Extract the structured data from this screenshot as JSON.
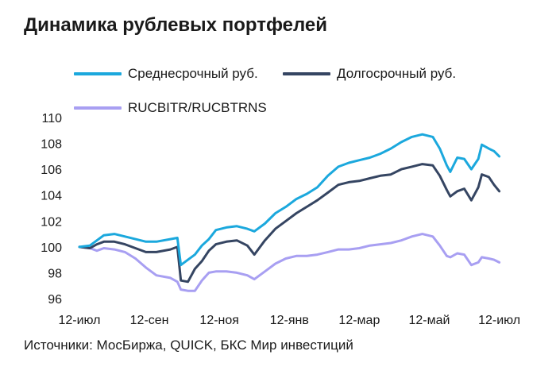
{
  "title": "Динамика рублевых портфелей",
  "source": "Источники: МосБиржа, QUICK, БКС Мир инвестиций",
  "chart_data": {
    "type": "line",
    "title": "Динамика рублевых портфелей",
    "xlabel": "",
    "ylabel": "",
    "ylim": [
      96,
      110
    ],
    "yticks": [
      96,
      98,
      100,
      102,
      104,
      106,
      108,
      110
    ],
    "xlim": [
      0,
      12.1
    ],
    "xticks": [
      {
        "label": "12-июл",
        "x": 0
      },
      {
        "label": "12-сен",
        "x": 2
      },
      {
        "label": "12-ноя",
        "x": 4
      },
      {
        "label": "12-янв",
        "x": 6
      },
      {
        "label": "12-мар",
        "x": 8
      },
      {
        "label": "12-май",
        "x": 10
      },
      {
        "label": "12-июл",
        "x": 12
      }
    ],
    "grid": false,
    "legend": "top",
    "series": [
      {
        "name": "Среднесрочный руб.",
        "color": "#1ba8dd",
        "points": [
          [
            0,
            100
          ],
          [
            0.3,
            100.1
          ],
          [
            0.5,
            100.5
          ],
          [
            0.7,
            100.9
          ],
          [
            1,
            101
          ],
          [
            1.3,
            100.8
          ],
          [
            1.6,
            100.6
          ],
          [
            1.9,
            100.4
          ],
          [
            2.2,
            100.4
          ],
          [
            2.6,
            100.6
          ],
          [
            2.8,
            100.7
          ],
          [
            2.9,
            98.6
          ],
          [
            3.1,
            99
          ],
          [
            3.3,
            99.4
          ],
          [
            3.5,
            100.1
          ],
          [
            3.7,
            100.6
          ],
          [
            3.9,
            101.3
          ],
          [
            4.2,
            101.5
          ],
          [
            4.5,
            101.6
          ],
          [
            4.8,
            101.4
          ],
          [
            5,
            101.2
          ],
          [
            5.3,
            101.8
          ],
          [
            5.6,
            102.6
          ],
          [
            5.9,
            103.1
          ],
          [
            6.2,
            103.7
          ],
          [
            6.5,
            104.1
          ],
          [
            6.8,
            104.6
          ],
          [
            7.1,
            105.5
          ],
          [
            7.4,
            106.2
          ],
          [
            7.7,
            106.5
          ],
          [
            8,
            106.7
          ],
          [
            8.3,
            106.9
          ],
          [
            8.6,
            107.2
          ],
          [
            8.9,
            107.6
          ],
          [
            9.2,
            108.1
          ],
          [
            9.5,
            108.5
          ],
          [
            9.8,
            108.7
          ],
          [
            10.1,
            108.5
          ],
          [
            10.3,
            107.6
          ],
          [
            10.5,
            106.3
          ],
          [
            10.6,
            105.8
          ],
          [
            10.8,
            106.9
          ],
          [
            11,
            106.8
          ],
          [
            11.2,
            106
          ],
          [
            11.4,
            106.8
          ],
          [
            11.5,
            107.9
          ],
          [
            11.7,
            107.6
          ],
          [
            11.85,
            107.4
          ],
          [
            12,
            107
          ]
        ]
      },
      {
        "name": "Долгосрочный руб.",
        "color": "#354562",
        "points": [
          [
            0,
            100
          ],
          [
            0.3,
            99.9
          ],
          [
            0.5,
            100.2
          ],
          [
            0.7,
            100.4
          ],
          [
            1,
            100.4
          ],
          [
            1.3,
            100.2
          ],
          [
            1.6,
            99.9
          ],
          [
            1.9,
            99.6
          ],
          [
            2.2,
            99.6
          ],
          [
            2.6,
            99.8
          ],
          [
            2.8,
            100
          ],
          [
            2.9,
            97.4
          ],
          [
            3.1,
            97.3
          ],
          [
            3.3,
            98.3
          ],
          [
            3.5,
            98.9
          ],
          [
            3.7,
            99.7
          ],
          [
            3.9,
            100.2
          ],
          [
            4.2,
            100.4
          ],
          [
            4.5,
            100.5
          ],
          [
            4.8,
            100.1
          ],
          [
            5,
            99.4
          ],
          [
            5.3,
            100.5
          ],
          [
            5.6,
            101.4
          ],
          [
            5.9,
            102
          ],
          [
            6.2,
            102.6
          ],
          [
            6.5,
            103.1
          ],
          [
            6.8,
            103.6
          ],
          [
            7.1,
            104.2
          ],
          [
            7.4,
            104.8
          ],
          [
            7.7,
            105
          ],
          [
            8,
            105.1
          ],
          [
            8.3,
            105.3
          ],
          [
            8.6,
            105.5
          ],
          [
            8.9,
            105.6
          ],
          [
            9.2,
            106
          ],
          [
            9.5,
            106.2
          ],
          [
            9.8,
            106.4
          ],
          [
            10.1,
            106.3
          ],
          [
            10.3,
            105.5
          ],
          [
            10.5,
            104.4
          ],
          [
            10.6,
            103.9
          ],
          [
            10.8,
            104.3
          ],
          [
            11,
            104.5
          ],
          [
            11.2,
            103.6
          ],
          [
            11.4,
            104.6
          ],
          [
            11.5,
            105.6
          ],
          [
            11.7,
            105.4
          ],
          [
            11.85,
            104.8
          ],
          [
            12,
            104.3
          ]
        ]
      },
      {
        "name": "RUCBITR/RUCBTRNS",
        "color": "#a89ff2",
        "points": [
          [
            0,
            100
          ],
          [
            0.3,
            99.9
          ],
          [
            0.5,
            99.7
          ],
          [
            0.7,
            99.9
          ],
          [
            1,
            99.8
          ],
          [
            1.3,
            99.6
          ],
          [
            1.6,
            99.1
          ],
          [
            1.9,
            98.4
          ],
          [
            2.2,
            97.8
          ],
          [
            2.6,
            97.6
          ],
          [
            2.8,
            97.3
          ],
          [
            2.9,
            96.7
          ],
          [
            3.1,
            96.6
          ],
          [
            3.3,
            96.6
          ],
          [
            3.5,
            97.4
          ],
          [
            3.7,
            98
          ],
          [
            3.9,
            98.1
          ],
          [
            4.2,
            98.1
          ],
          [
            4.5,
            98
          ],
          [
            4.8,
            97.8
          ],
          [
            5,
            97.5
          ],
          [
            5.3,
            98.1
          ],
          [
            5.6,
            98.7
          ],
          [
            5.9,
            99.1
          ],
          [
            6.2,
            99.3
          ],
          [
            6.5,
            99.3
          ],
          [
            6.8,
            99.4
          ],
          [
            7.1,
            99.6
          ],
          [
            7.4,
            99.8
          ],
          [
            7.7,
            99.8
          ],
          [
            8,
            99.9
          ],
          [
            8.3,
            100.1
          ],
          [
            8.6,
            100.2
          ],
          [
            8.9,
            100.3
          ],
          [
            9.2,
            100.5
          ],
          [
            9.5,
            100.8
          ],
          [
            9.8,
            101
          ],
          [
            10.1,
            100.8
          ],
          [
            10.3,
            100.1
          ],
          [
            10.5,
            99.3
          ],
          [
            10.6,
            99.2
          ],
          [
            10.8,
            99.5
          ],
          [
            11,
            99.4
          ],
          [
            11.2,
            98.6
          ],
          [
            11.4,
            98.8
          ],
          [
            11.5,
            99.2
          ],
          [
            11.7,
            99.1
          ],
          [
            11.85,
            99
          ],
          [
            12,
            98.8
          ]
        ]
      }
    ]
  }
}
